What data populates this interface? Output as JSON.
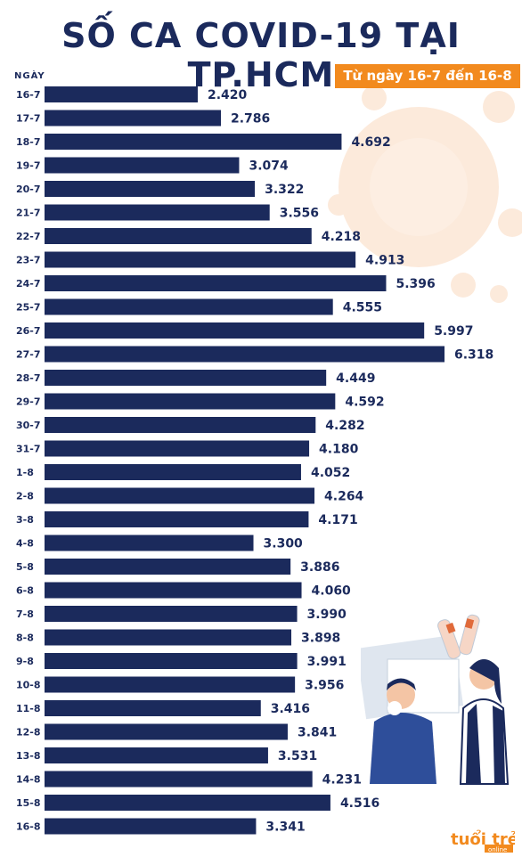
{
  "title": "SỐ CA COVID-19 TẠI TP.HCM",
  "subtitle": "Từ ngày 16-7 đến 16-8",
  "brand": "tuổi trẻ online",
  "colors": {
    "bar": "#1b2a5c",
    "accent": "#f28a1e",
    "text": "#1b2a5c"
  },
  "chart_data": {
    "type": "bar",
    "orientation": "horizontal",
    "ylabel": "NGÀY",
    "categories": [
      "16-7",
      "17-7",
      "18-7",
      "19-7",
      "20-7",
      "21-7",
      "22-7",
      "23-7",
      "24-7",
      "25-7",
      "26-7",
      "27-7",
      "28-7",
      "29-7",
      "30-7",
      "31-7",
      "1-8",
      "2-8",
      "3-8",
      "4-8",
      "5-8",
      "6-8",
      "7-8",
      "8-8",
      "9-8",
      "10-8",
      "11-8",
      "12-8",
      "13-8",
      "14-8",
      "15-8",
      "16-8"
    ],
    "values": [
      2420,
      2786,
      4692,
      3074,
      3322,
      3556,
      4218,
      4913,
      5396,
      4555,
      5997,
      6318,
      4449,
      4592,
      4282,
      4180,
      4052,
      4264,
      4171,
      3300,
      3886,
      4060,
      3990,
      3898,
      3991,
      3956,
      3416,
      3841,
      3531,
      4231,
      4516,
      3341
    ],
    "value_labels": [
      "2.420",
      "2.786",
      "4.692",
      "3.074",
      "3.322",
      "3.556",
      "4.218",
      "4.913",
      "5.396",
      "4.555",
      "5.997",
      "6.318",
      "4.449",
      "4.592",
      "4.282",
      "4.180",
      "4.052",
      "4.264",
      "4.171",
      "3.300",
      "3.886",
      "4.060",
      "3.990",
      "3.898",
      "3.991",
      "3.956",
      "3.416",
      "3.841",
      "3.531",
      "4.231",
      "4.516",
      "3.341"
    ]
  }
}
